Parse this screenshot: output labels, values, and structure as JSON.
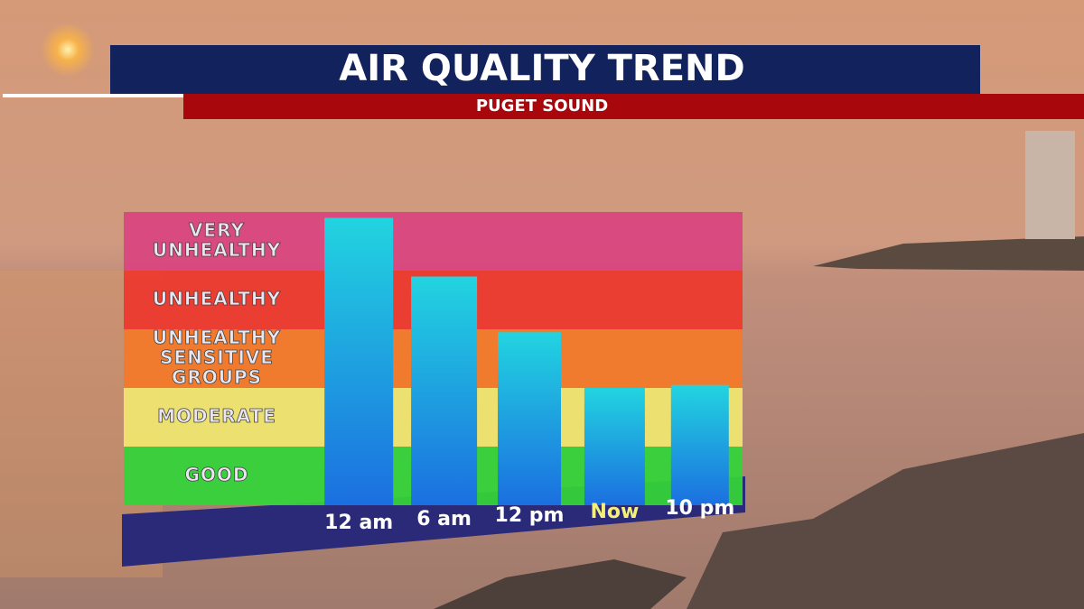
{
  "chart_data": {
    "type": "bar",
    "title": "AIR QUALITY TREND",
    "subtitle": "PUGET SOUND",
    "categories": [
      "12 am",
      "6 am",
      "12 pm",
      "Now",
      "10 pm"
    ],
    "category_label_colors": [
      "#ffffff",
      "#ffffff",
      "#ffffff",
      "#f4ef7a",
      "#ffffff"
    ],
    "values": [
      4.9,
      3.9,
      2.95,
      2.0,
      2.05
    ],
    "ylim": [
      0,
      5
    ],
    "bands": [
      {
        "lines": [
          "GOOD"
        ],
        "color": "#35d23a"
      },
      {
        "lines": [
          "MODERATE"
        ],
        "color": "#efe570"
      },
      {
        "lines": [
          "UNHEALTHY",
          "SENSITIVE",
          "GROUPS"
        ],
        "color": "#f27a2a"
      },
      {
        "lines": [
          "UNHEALTHY"
        ],
        "color": "#ec3a2e"
      },
      {
        "lines": [
          "VERY",
          "UNHEALTHY"
        ],
        "color": "#d9477f"
      }
    ]
  }
}
